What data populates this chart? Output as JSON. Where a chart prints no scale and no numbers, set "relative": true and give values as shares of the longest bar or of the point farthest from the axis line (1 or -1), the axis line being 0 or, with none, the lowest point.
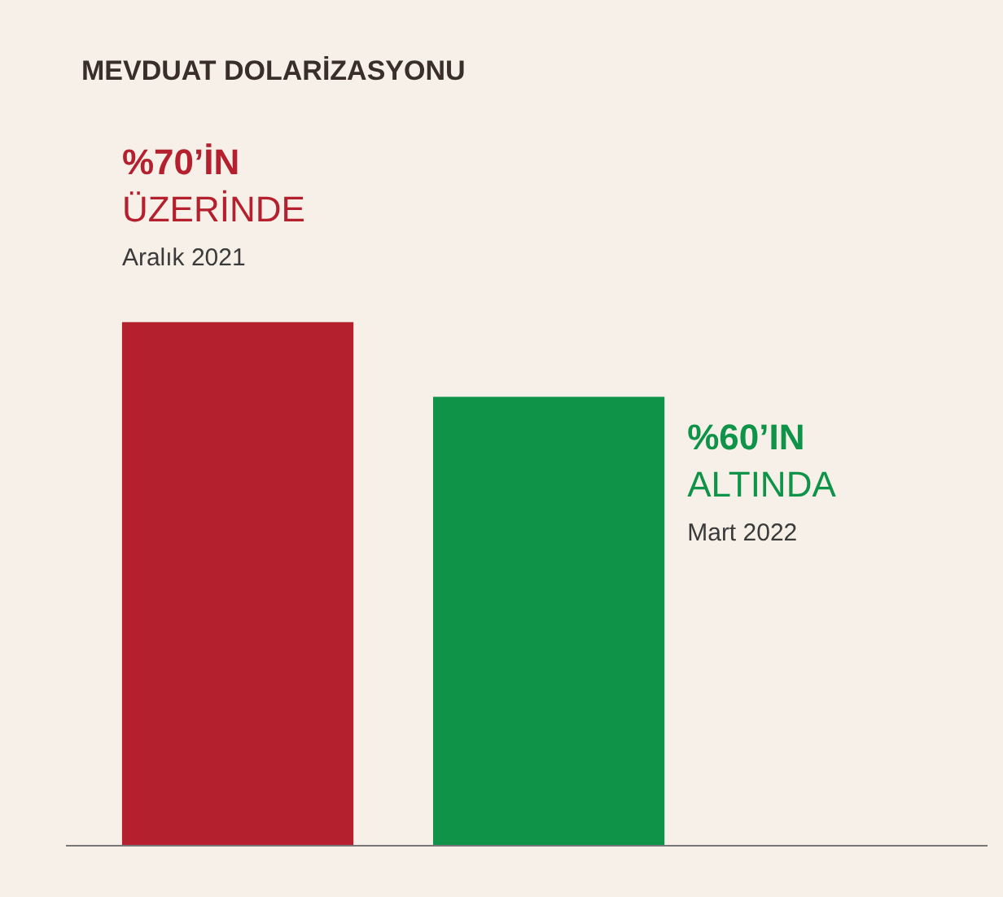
{
  "chart_data": {
    "type": "bar",
    "title": "MEVDUAT DOLARİZASYONU",
    "relative": true,
    "categories": [
      null,
      null
    ],
    "values": [
      1,
      0.857
    ],
    "colors": [
      "#b5202e",
      "#0e9348"
    ],
    "annotations": [
      "%70’İN",
      "ÜZERİNDE",
      "Aralık 2021",
      "%60’IN",
      "ALTINDA",
      "Mart 2022"
    ]
  }
}
